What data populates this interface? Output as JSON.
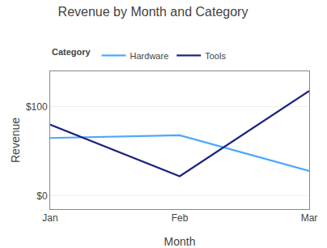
{
  "chart_data": {
    "type": "line",
    "title": "Revenue by Month and Category",
    "x_label": "Month",
    "y_label": "Revenue",
    "legend_title": "Category",
    "categories": [
      "Jan",
      "Feb",
      "Mar"
    ],
    "series": [
      {
        "name": "Hardware",
        "color": "#4da6ff",
        "values": [
          65,
          68,
          28
        ]
      },
      {
        "name": "Tools",
        "color": "#1a237e",
        "values": [
          80,
          22,
          118
        ]
      }
    ],
    "ylim": [
      -15,
      140
    ],
    "yticks": [
      {
        "value": 0,
        "label": "$0"
      },
      {
        "value": 100,
        "label": "$100"
      }
    ],
    "grid": true,
    "legend": "upper left"
  }
}
